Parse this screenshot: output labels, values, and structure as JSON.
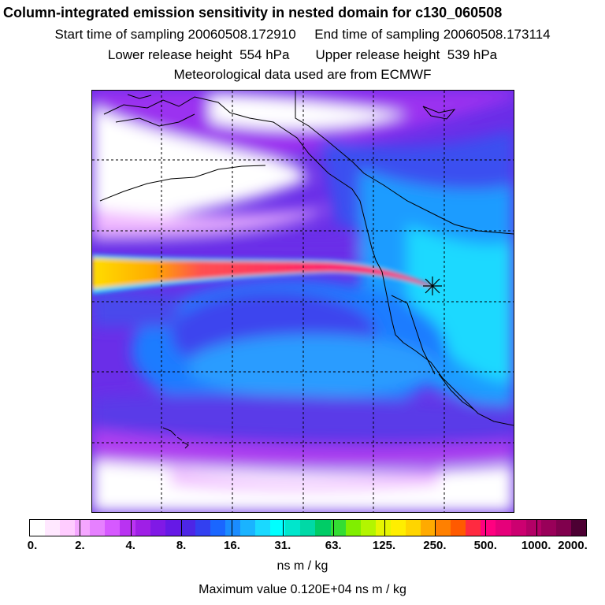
{
  "header": {
    "title": "Column-integrated emission sensitivity in nested domain for c130_060508",
    "sampling": "Start time of sampling 20060508.172910     End time of sampling 20060508.173114",
    "release": "Lower release height  554 hPa       Upper release height  539 hPa",
    "met": "Meteorological data used are from ECMWF"
  },
  "colorbar": {
    "labels": [
      "0.",
      "2.",
      "4.",
      "8.",
      "16.",
      "31.",
      "63.",
      "125.",
      "250.",
      "500.",
      "1000.",
      "2000."
    ],
    "colors": [
      "#ffffff",
      "#ffe8ff",
      "#ffccff",
      "#f5a6ff",
      "#e680ff",
      "#d659ff",
      "#b933f2",
      "#9f1fe6",
      "#8019e6",
      "#6619e6",
      "#4d26e6",
      "#3340f0",
      "#1a66ff",
      "#1a8cff",
      "#1ab3ff",
      "#1ad9ff",
      "#00ffff",
      "#00e6cc",
      "#00d9a6",
      "#00cc66",
      "#33dd33",
      "#80ee00",
      "#b3f500",
      "#e6f500",
      "#ffee00",
      "#ffd500",
      "#ffaa00",
      "#ff8000",
      "#ff5a00",
      "#ff2a40",
      "#ff0080",
      "#e6007a",
      "#cc0070",
      "#b30066",
      "#990059",
      "#80004d",
      "#4d0033"
    ],
    "units": "ns m / kg"
  },
  "maximum": "Maximum value  0.120E+04 ns m / kg"
}
